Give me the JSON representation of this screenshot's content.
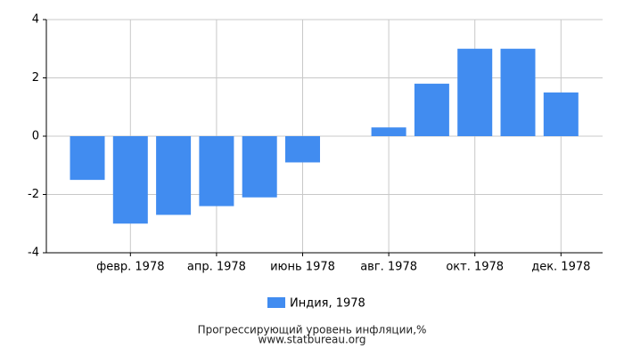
{
  "chart_data": {
    "type": "bar",
    "categories": [
      null,
      "февр. 1978",
      null,
      "апр. 1978",
      null,
      "июнь 1978",
      null,
      "авг. 1978",
      null,
      "окт. 1978",
      null,
      "дек. 1978"
    ],
    "series": [
      {
        "name": "Индия, 1978",
        "color": "#418cf0",
        "values": [
          -1.5,
          -3.0,
          -2.7,
          -2.4,
          -2.1,
          -0.9,
          0,
          0.3,
          1.8,
          3.0,
          3.0,
          1.5
        ]
      }
    ],
    "ylim": [
      -4,
      4
    ],
    "yticks": [
      -4,
      -2,
      0,
      2,
      4
    ],
    "grid": true,
    "title": "Прогрессирующий уровень инфляции,%",
    "subtitle": "www.statbureau.org"
  }
}
